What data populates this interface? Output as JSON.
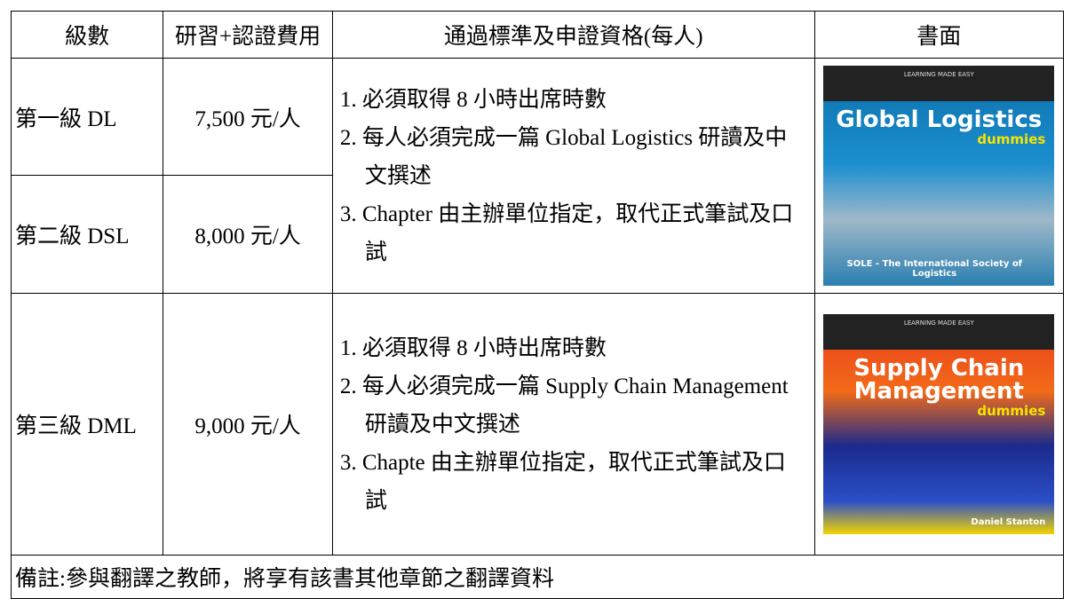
{
  "table": {
    "header": [
      "級數",
      "研習+認證費用",
      "通過標準及申證資格(每人)",
      "書面"
    ],
    "groups": [
      {
        "rows": [
          {
            "level": "第一級 DL",
            "fee": "7,500 元/人"
          },
          {
            "level": "第二級 DSL",
            "fee": "8,000 元/人"
          }
        ],
        "requirements": [
          "1. 必須取得 8 小時出席時數",
          "2. 每人必須完成一篇 Global Logistics 研讀及中文撰述",
          "3. Chapter 由主辦單位指定，取代正式筆試及口試"
        ],
        "cover": {
          "title": "Global Logistics",
          "brand": "dummies",
          "top": "LEARNING MADE EASY",
          "publisher": "SOLE - The International Society of Logistics"
        }
      },
      {
        "rows": [
          {
            "level": "第三級 DML",
            "fee": "9,000 元/人"
          }
        ],
        "requirements": [
          "1. 必須取得 8 小時出席時數",
          "2. 每人必須完成一篇 Supply Chain Management 研讀及中文撰述",
          "3. Chapte 由主辦單位指定，取代正式筆試及口試"
        ],
        "cover": {
          "title": "Supply Chain Management",
          "brand": "dummies",
          "top": "LEARNING MADE EASY",
          "publisher": "Daniel Stanton"
        }
      }
    ],
    "note": "備註:參與翻譯之教師，將享有該書其他章節之翻譯資料"
  }
}
